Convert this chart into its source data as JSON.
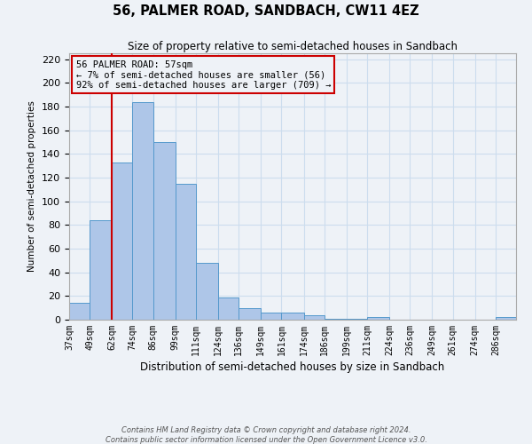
{
  "title": "56, PALMER ROAD, SANDBACH, CW11 4EZ",
  "subtitle": "Size of property relative to semi-detached houses in Sandbach",
  "xlabel": "Distribution of semi-detached houses by size in Sandbach",
  "ylabel": "Number of semi-detached properties",
  "bin_labels": [
    "37sqm",
    "49sqm",
    "62sqm",
    "74sqm",
    "86sqm",
    "99sqm",
    "111sqm",
    "124sqm",
    "136sqm",
    "149sqm",
    "161sqm",
    "174sqm",
    "186sqm",
    "199sqm",
    "211sqm",
    "224sqm",
    "236sqm",
    "249sqm",
    "261sqm",
    "274sqm",
    "286sqm"
  ],
  "bin_edges": [
    37,
    49,
    62,
    74,
    86,
    99,
    111,
    124,
    136,
    149,
    161,
    174,
    186,
    199,
    211,
    224,
    236,
    249,
    261,
    274,
    286,
    298
  ],
  "bar_values": [
    14,
    84,
    133,
    184,
    150,
    115,
    48,
    19,
    10,
    6,
    6,
    4,
    1,
    1,
    2,
    0,
    0,
    0,
    0,
    0,
    2
  ],
  "bar_color": "#aec6e8",
  "bar_edgecolor": "#5599cc",
  "property_line_x": 62,
  "property_sqm": 57,
  "pct_smaller": 7,
  "pct_larger": 92,
  "count_smaller": 56,
  "count_larger": 709,
  "red_line_color": "#cc0000",
  "annotation_box_edgecolor": "#cc0000",
  "ylim": [
    0,
    225
  ],
  "yticks": [
    0,
    20,
    40,
    60,
    80,
    100,
    120,
    140,
    160,
    180,
    200,
    220
  ],
  "grid_color": "#ccddee",
  "background_color": "#eef2f7",
  "footer_line1": "Contains HM Land Registry data © Crown copyright and database right 2024.",
  "footer_line2": "Contains public sector information licensed under the Open Government Licence v3.0."
}
